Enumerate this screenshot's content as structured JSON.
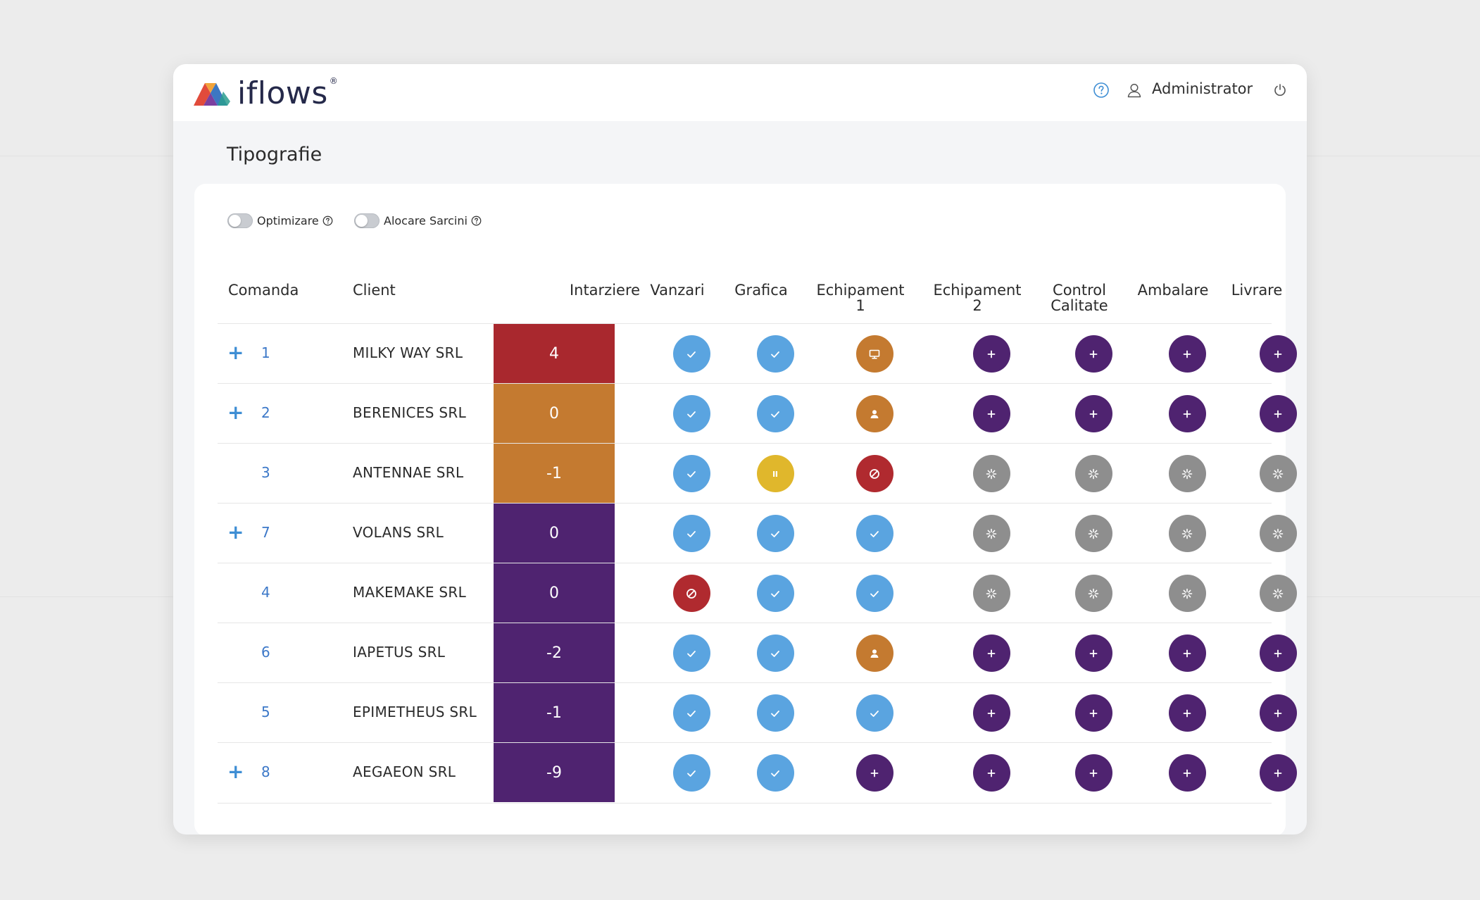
{
  "app": {
    "brand": "iflows",
    "registered": "®"
  },
  "header": {
    "user_name": "Administrator",
    "help_icon": "question-circle-icon",
    "user_icon": "user-outline-icon",
    "power_icon": "power-icon"
  },
  "page": {
    "title": "Tipografie"
  },
  "toggles": [
    {
      "label": "Optimizare",
      "enabled": false
    },
    {
      "label": "Alocare Sarcini",
      "enabled": false
    }
  ],
  "columns": {
    "comanda": "Comanda",
    "client": "Client",
    "intarziere": "Intarziere",
    "vanzari": "Vanzari",
    "grafica": "Grafica",
    "echipament1": [
      "Echipament",
      "1"
    ],
    "echipament2": [
      "Echipament",
      "2"
    ],
    "control": [
      "Control",
      "Calitate"
    ],
    "ambalare": "Ambalare",
    "livrare": "Livrare"
  },
  "status_legend": {
    "done": {
      "color": "#5aa4e0",
      "icon": "check-icon"
    },
    "paused": {
      "color": "#e0b72c",
      "icon": "pause-icon"
    },
    "blocked": {
      "color": "#b02a2f",
      "icon": "ban-icon"
    },
    "machine": {
      "color": "#c47a30",
      "icon": "monitor-icon"
    },
    "operator": {
      "color": "#c47a30",
      "icon": "person-icon"
    },
    "add": {
      "color": "#4f2370",
      "icon": "plus-icon"
    },
    "waiting": {
      "color": "#8e8e8e",
      "icon": "spinner-icon"
    }
  },
  "delay_colors": {
    "high": "#a9282e",
    "medium": "#c47a30",
    "low": "#4f2370"
  },
  "orders": [
    {
      "expandable": true,
      "id": "1",
      "client": "MILKY WAY SRL",
      "delay": "4",
      "delay_level": "high",
      "steps": [
        "done",
        "done",
        "machine",
        "add",
        "add",
        "add",
        "add"
      ]
    },
    {
      "expandable": true,
      "id": "2",
      "client": "BERENICES SRL",
      "delay": "0",
      "delay_level": "medium",
      "steps": [
        "done",
        "done",
        "operator",
        "add",
        "add",
        "add",
        "add"
      ]
    },
    {
      "expandable": false,
      "id": "3",
      "client": "ANTENNAE SRL",
      "delay": "-1",
      "delay_level": "medium",
      "steps": [
        "done",
        "paused",
        "blocked",
        "waiting",
        "waiting",
        "waiting",
        "waiting"
      ]
    },
    {
      "expandable": true,
      "id": "7",
      "client": "VOLANS SRL",
      "delay": "0",
      "delay_level": "low",
      "steps": [
        "done",
        "done",
        "done",
        "waiting",
        "waiting",
        "waiting",
        "waiting"
      ]
    },
    {
      "expandable": false,
      "id": "4",
      "client": "MAKEMAKE SRL",
      "delay": "0",
      "delay_level": "low",
      "steps": [
        "blocked",
        "done",
        "done",
        "waiting",
        "waiting",
        "waiting",
        "waiting"
      ]
    },
    {
      "expandable": false,
      "id": "6",
      "client": "IAPETUS SRL",
      "delay": "-2",
      "delay_level": "low",
      "steps": [
        "done",
        "done",
        "operator",
        "add",
        "add",
        "add",
        "add"
      ]
    },
    {
      "expandable": false,
      "id": "5",
      "client": "EPIMETHEUS SRL",
      "delay": "-1",
      "delay_level": "low",
      "steps": [
        "done",
        "done",
        "done",
        "add",
        "add",
        "add",
        "add"
      ]
    },
    {
      "expandable": true,
      "id": "8",
      "client": "AEGAEON SRL",
      "delay": "-9",
      "delay_level": "low",
      "steps": [
        "done",
        "done",
        "add",
        "add",
        "add",
        "add",
        "add"
      ]
    }
  ]
}
